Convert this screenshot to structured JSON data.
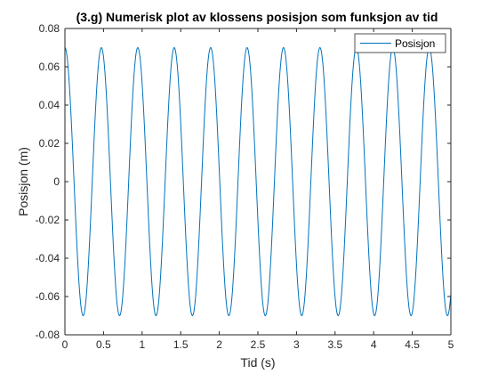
{
  "chart_data": {
    "type": "line",
    "title": "(3.g) Numerisk plot av klossens posisjon som funksjon av tid",
    "xlabel": "Tid (s)",
    "ylabel": "Posisjon (m)",
    "xlim": [
      0,
      5
    ],
    "ylim": [
      -0.08,
      0.08
    ],
    "xticks": [
      0,
      0.5,
      1,
      1.5,
      2,
      2.5,
      3,
      3.5,
      4,
      4.5,
      5
    ],
    "xtick_labels": [
      "0",
      "0.5",
      "1",
      "1.5",
      "2",
      "2.5",
      "3",
      "3.5",
      "4",
      "4.5",
      "5"
    ],
    "yticks": [
      -0.08,
      -0.06,
      -0.04,
      -0.02,
      0,
      0.02,
      0.04,
      0.06,
      0.08
    ],
    "ytick_labels": [
      "-0.08",
      "-0.06",
      "-0.04",
      "-0.02",
      "0",
      "0.02",
      "0.04",
      "0.06",
      "0.08"
    ],
    "grid": false,
    "legend": {
      "position": "top-right",
      "entries": [
        "Posisjon"
      ]
    },
    "series": [
      {
        "name": "Posisjon",
        "color": "#0072BD",
        "amplitude": 0.07,
        "period": 0.472,
        "x": [
          0,
          0.118,
          0.236,
          0.354,
          0.472,
          0.59,
          0.708,
          0.826,
          0.944,
          1.062,
          1.18,
          1.298,
          1.416,
          1.534,
          1.652,
          1.77,
          1.888,
          2.006,
          2.124,
          2.242,
          2.36,
          2.478,
          2.596,
          2.714,
          2.832,
          2.95,
          3.068,
          3.186,
          3.304,
          3.422,
          3.54,
          3.658,
          3.776,
          3.894,
          4.012,
          4.13,
          4.248,
          4.366,
          4.484,
          4.602,
          4.72,
          4.838,
          4.956,
          5
        ],
        "y": [
          0.07,
          0,
          -0.07,
          0,
          0.07,
          0,
          -0.07,
          0,
          0.07,
          0,
          -0.07,
          0,
          0.07,
          0,
          -0.07,
          0,
          0.07,
          0,
          -0.07,
          0,
          0.07,
          0,
          -0.07,
          0,
          0.07,
          0,
          -0.07,
          0,
          0.07,
          0,
          -0.07,
          0,
          0.07,
          0,
          -0.07,
          0,
          0.07,
          0,
          -0.07,
          0,
          0.07,
          0,
          -0.07,
          -0.066
        ]
      }
    ]
  }
}
